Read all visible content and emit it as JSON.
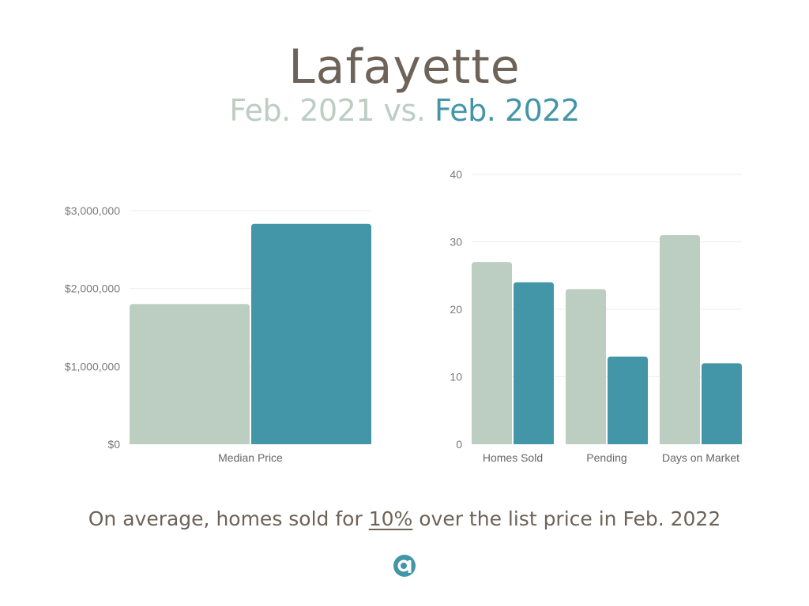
{
  "header": {
    "title": "Lafayette",
    "subtitle_prev": "Feb. 2021 vs.",
    "subtitle_cur": "Feb. 2022"
  },
  "colors": {
    "prev": "#bccdc2",
    "cur": "#4396a8",
    "grid": "#eeeeee",
    "text": "#6e6358"
  },
  "chart_data": [
    {
      "type": "bar",
      "categories": [
        "Median Price"
      ],
      "series": [
        {
          "values": [
            1800000
          ]
        },
        {
          "values": [
            2830000
          ]
        }
      ],
      "yticks": [
        "$0",
        "$1,000,000",
        "$2,000,000",
        "$3,000,000"
      ],
      "ylim": [
        0,
        3000000
      ],
      "grid": true
    },
    {
      "type": "bar",
      "categories": [
        "Homes Sold",
        "Pending",
        "Days on Market"
      ],
      "series": [
        {
          "values": [
            27,
            23,
            31
          ]
        },
        {
          "values": [
            24,
            13,
            12
          ]
        }
      ],
      "yticks": [
        "0",
        "10",
        "20",
        "30",
        "40"
      ],
      "ylim": [
        0,
        40
      ],
      "grid": true
    }
  ],
  "footer": {
    "text_before": "On average, homes sold for ",
    "highlight": "10%",
    "text_after": " over the list price in Feb. 2022",
    "logo_icon": "brand-logo-icon"
  }
}
